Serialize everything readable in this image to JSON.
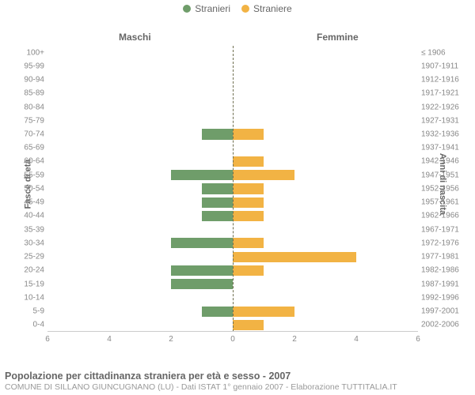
{
  "legend": {
    "male": {
      "label": "Stranieri",
      "color": "#6f9d6a"
    },
    "female": {
      "label": "Straniere",
      "color": "#f2b344"
    }
  },
  "headers": {
    "male": "Maschi",
    "female": "Femmine"
  },
  "axis_titles": {
    "left": "Fasce di età",
    "right": "Anni di nascita"
  },
  "chart": {
    "type": "population-pyramid",
    "x_max": 6,
    "x_ticks": [
      6,
      4,
      2,
      0,
      2,
      4,
      6
    ],
    "background_color": "#ffffff",
    "grid_color": "#cccccc",
    "centerline_color": "#6f6f50",
    "bar_color_m": "#6f9d6a",
    "bar_color_f": "#f2b344",
    "label_color": "#888888",
    "header_color": "#666666",
    "label_fontsize": 10,
    "header_fontsize": 12,
    "row_gap_pct": 12,
    "rows": [
      {
        "age": "100+",
        "birth": "≤ 1906",
        "m": 0,
        "f": 0
      },
      {
        "age": "95-99",
        "birth": "1907-1911",
        "m": 0,
        "f": 0
      },
      {
        "age": "90-94",
        "birth": "1912-1916",
        "m": 0,
        "f": 0
      },
      {
        "age": "85-89",
        "birth": "1917-1921",
        "m": 0,
        "f": 0
      },
      {
        "age": "80-84",
        "birth": "1922-1926",
        "m": 0,
        "f": 0
      },
      {
        "age": "75-79",
        "birth": "1927-1931",
        "m": 0,
        "f": 0
      },
      {
        "age": "70-74",
        "birth": "1932-1936",
        "m": 1,
        "f": 1
      },
      {
        "age": "65-69",
        "birth": "1937-1941",
        "m": 0,
        "f": 0
      },
      {
        "age": "60-64",
        "birth": "1942-1946",
        "m": 0,
        "f": 1
      },
      {
        "age": "55-59",
        "birth": "1947-1951",
        "m": 2,
        "f": 2
      },
      {
        "age": "50-54",
        "birth": "1952-1956",
        "m": 1,
        "f": 1
      },
      {
        "age": "45-49",
        "birth": "1957-1961",
        "m": 1,
        "f": 1
      },
      {
        "age": "40-44",
        "birth": "1962-1966",
        "m": 1,
        "f": 1
      },
      {
        "age": "35-39",
        "birth": "1967-1971",
        "m": 0,
        "f": 0
      },
      {
        "age": "30-34",
        "birth": "1972-1976",
        "m": 2,
        "f": 1
      },
      {
        "age": "25-29",
        "birth": "1977-1981",
        "m": 0,
        "f": 4
      },
      {
        "age": "20-24",
        "birth": "1982-1986",
        "m": 2,
        "f": 1
      },
      {
        "age": "15-19",
        "birth": "1987-1991",
        "m": 2,
        "f": 0
      },
      {
        "age": "10-14",
        "birth": "1992-1996",
        "m": 0,
        "f": 0
      },
      {
        "age": "5-9",
        "birth": "1997-2001",
        "m": 1,
        "f": 2
      },
      {
        "age": "0-4",
        "birth": "2002-2006",
        "m": 0,
        "f": 1
      }
    ]
  },
  "footer": {
    "title": "Popolazione per cittadinanza straniera per età e sesso - 2007",
    "subtitle": "COMUNE DI SILLANO GIUNCUGNANO (LU) - Dati ISTAT 1° gennaio 2007 - Elaborazione TUTTITALIA.IT"
  }
}
